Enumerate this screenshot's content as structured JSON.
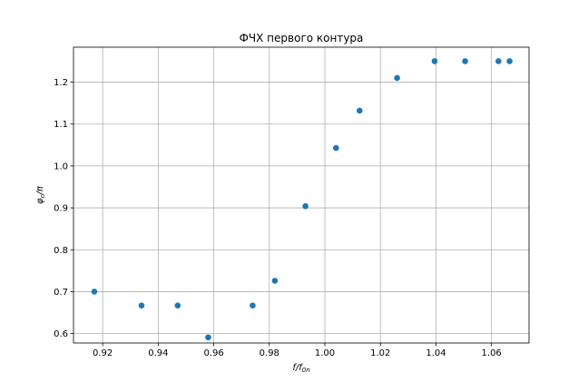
{
  "chart_data": {
    "type": "scatter",
    "title": "ФЧХ первого контура",
    "xlabel": "f/f0n",
    "ylabel": "φc/π",
    "xlim": [
      0.9095,
      1.0735
    ],
    "ylim": [
      0.5775,
      1.2835
    ],
    "xticks": [
      0.92,
      0.94,
      0.96,
      0.98,
      1.0,
      1.02,
      1.04,
      1.06
    ],
    "xtick_labels": [
      "0.92",
      "0.94",
      "0.96",
      "0.98",
      "1.00",
      "1.02",
      "1.04",
      "1.06"
    ],
    "yticks": [
      0.6,
      0.7,
      0.8,
      0.9,
      1.0,
      1.1,
      1.2
    ],
    "ytick_labels": [
      "0.6",
      "0.7",
      "0.8",
      "0.9",
      "1.0",
      "1.1",
      "1.2"
    ],
    "grid": true,
    "points": [
      {
        "x": 0.917,
        "y": 0.7
      },
      {
        "x": 0.934,
        "y": 0.667
      },
      {
        "x": 0.947,
        "y": 0.667
      },
      {
        "x": 0.958,
        "y": 0.591
      },
      {
        "x": 0.974,
        "y": 0.667
      },
      {
        "x": 0.982,
        "y": 0.726
      },
      {
        "x": 0.993,
        "y": 0.904
      },
      {
        "x": 1.004,
        "y": 1.043
      },
      {
        "x": 1.0125,
        "y": 1.132
      },
      {
        "x": 1.026,
        "y": 1.21
      },
      {
        "x": 1.0395,
        "y": 1.25
      },
      {
        "x": 1.0505,
        "y": 1.25
      },
      {
        "x": 1.0625,
        "y": 1.25
      },
      {
        "x": 1.0665,
        "y": 1.25
      }
    ],
    "marker_color": "#1f77b4",
    "grid_color": "#b0b0b0"
  }
}
